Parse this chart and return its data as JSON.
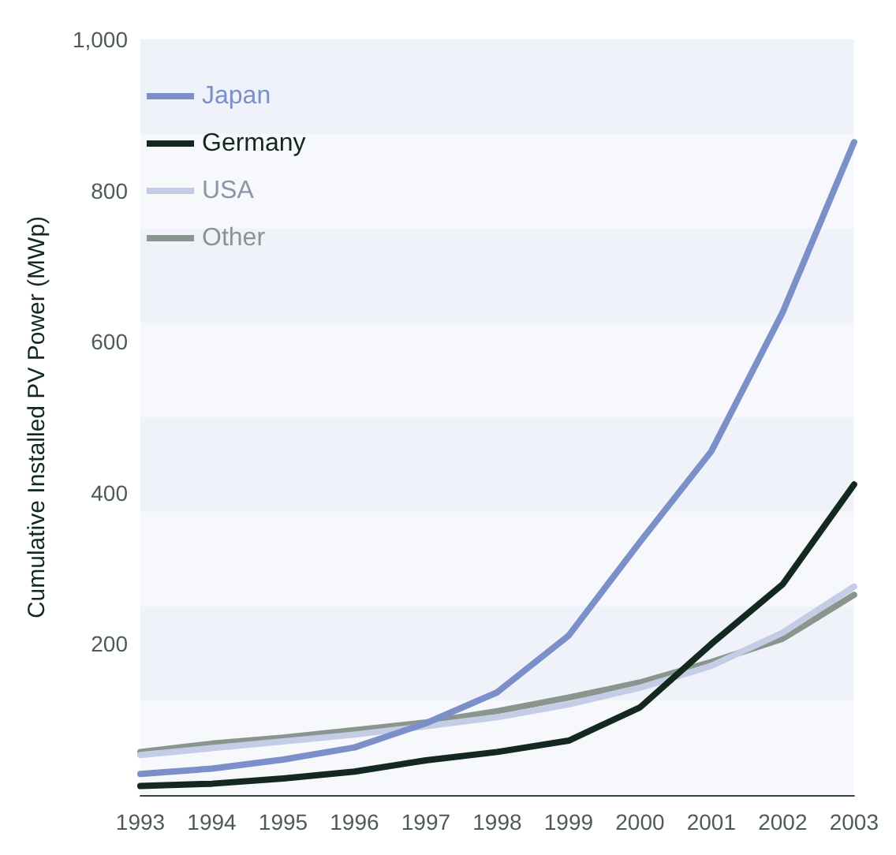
{
  "chart_data": {
    "type": "line",
    "ylabel": "Cumulative Installed PV Power (MWp)",
    "categories": [
      "1993",
      "1994",
      "1995",
      "1996",
      "1997",
      "1998",
      "1999",
      "2000",
      "2001",
      "2002",
      "2003"
    ],
    "series": [
      {
        "name": "Japan",
        "color": "#7b8fc8",
        "values": [
          28,
          35,
          47,
          63,
          95,
          136,
          211,
          335,
          455,
          639,
          864
        ]
      },
      {
        "name": "Germany",
        "color": "#13281f",
        "values": [
          12,
          15,
          22,
          31,
          46,
          57,
          72,
          116,
          200,
          279,
          411
        ]
      },
      {
        "name": "USA",
        "color": "#c5cde6",
        "values": [
          53,
          62,
          71,
          80,
          91,
          103,
          120,
          142,
          171,
          215,
          276
        ]
      },
      {
        "name": "Other",
        "color": "#8a958e",
        "values": [
          57,
          68,
          76,
          86,
          96,
          111,
          129,
          149,
          176,
          207,
          265
        ]
      }
    ],
    "ylim": [
      0,
      1000
    ],
    "yticks": [
      200,
      400,
      600,
      800,
      {
        "value": 1000,
        "label": "1,000"
      }
    ],
    "bands": [
      {
        "axis": "y",
        "from": 0,
        "to": 125,
        "color": "#f7f8fc"
      },
      {
        "axis": "y",
        "from": 125,
        "to": 250,
        "color": "#eff2f8"
      },
      {
        "axis": "y",
        "from": 250,
        "to": 375,
        "color": "#f7f8fc"
      },
      {
        "axis": "y",
        "from": 375,
        "to": 500,
        "color": "#eff2f8"
      },
      {
        "axis": "y",
        "from": 500,
        "to": 625,
        "color": "#f7f8fc"
      },
      {
        "axis": "y",
        "from": 625,
        "to": 750,
        "color": "#eff2f8"
      },
      {
        "axis": "y",
        "from": 750,
        "to": 875,
        "color": "#f7f8fc"
      },
      {
        "axis": "y",
        "from": 875,
        "to": 1000,
        "color": "#eff2f8"
      }
    ],
    "grid": false,
    "legend": "top left",
    "marker": "none",
    "line_style": "solid"
  }
}
